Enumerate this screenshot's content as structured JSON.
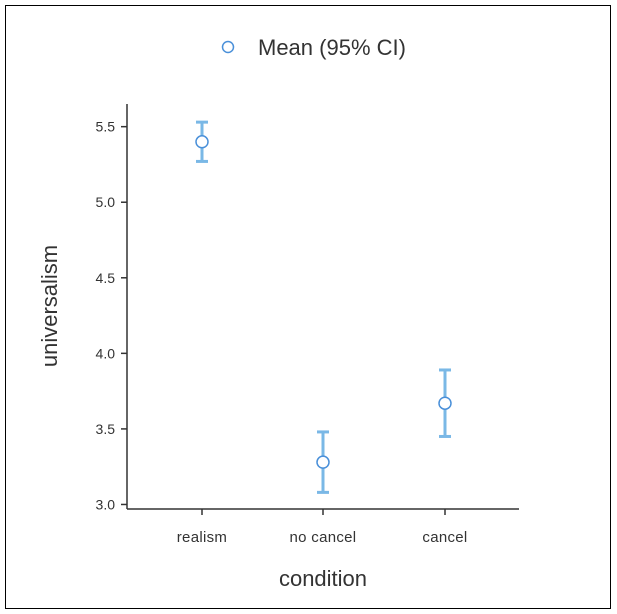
{
  "chart_data": {
    "type": "scatter",
    "legend": {
      "label": "Mean (95% CI)",
      "placement": "top-center"
    },
    "xlabel": "condition",
    "ylabel": "universalism",
    "categories": [
      "realism",
      "no cancel",
      "cancel"
    ],
    "ylim": [
      2.97,
      5.65
    ],
    "yticks": [
      "3.0",
      "3.5",
      "4.0",
      "4.5",
      "5.0",
      "5.5"
    ],
    "grid": false,
    "series": [
      {
        "mean": [
          5.4,
          3.28,
          3.67
        ],
        "ci_lower": [
          5.27,
          3.08,
          3.45
        ],
        "ci_upper": [
          5.53,
          3.48,
          3.89
        ]
      }
    ],
    "colors": {
      "error_bar": "#7ab8e6",
      "marker_edge": "#4a90d9",
      "marker_fill": "#ffffff",
      "axis": "#333333"
    }
  }
}
